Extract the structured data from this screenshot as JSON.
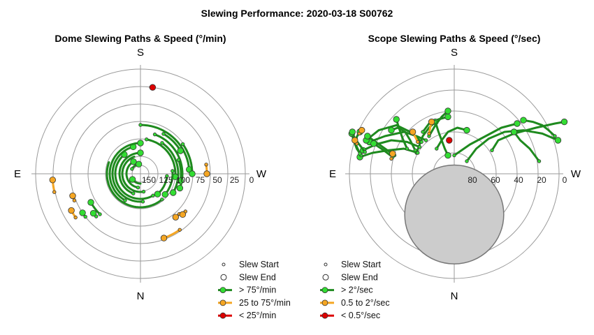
{
  "title": "Slewing Performance: 2020-03-18 S00762",
  "colors": {
    "fast": "#1e8a1e",
    "fast_marker": "#33dd33",
    "mid": "#f5a623",
    "slow": "#dd0000",
    "ring": "#9a9a9a",
    "axis": "#555555"
  },
  "chart_data": [
    {
      "type": "scatter",
      "subtype": "polar-track",
      "title": "Dome Slewing Paths & Speed (°/min)",
      "direction_labels": {
        "top": "S",
        "bottom": "N",
        "left": "E",
        "right": "W"
      },
      "radial_tick_labels": [
        "150",
        "125",
        "100",
        "75",
        "50",
        "25",
        "0"
      ],
      "radial_axis_range": [
        150,
        0
      ],
      "legend": [
        {
          "label": "Slew Start",
          "symbol": "small-circle"
        },
        {
          "label": "Slew End",
          "symbol": "open-circle"
        },
        {
          "label": "> 75°/min",
          "symbol": "line-marker",
          "color": "fast"
        },
        {
          "label": "25 to 75°/min",
          "symbol": "line-marker",
          "color": "mid"
        },
        {
          "label": "< 25°/min",
          "symbol": "line-marker",
          "color": "slow"
        }
      ],
      "series": [
        {
          "kind": "arc",
          "speed": "fast",
          "r": 14,
          "a1": 180,
          "a2": 235,
          "start": false,
          "end": true
        },
        {
          "kind": "arc",
          "speed": "fast",
          "r": 14,
          "a1": 300,
          "a2": 350,
          "start": true,
          "end": true
        },
        {
          "kind": "arc",
          "speed": "fast",
          "r": 20,
          "a1": 190,
          "a2": 330,
          "start": true,
          "end": true
        },
        {
          "kind": "arc",
          "speed": "fast",
          "r": 26,
          "a1": 170,
          "a2": 340,
          "start": true,
          "end": false
        },
        {
          "kind": "arc",
          "speed": "fast",
          "r": 30,
          "a1": 200,
          "a2": 360,
          "start": true,
          "end": true
        },
        {
          "kind": "arc",
          "speed": "fast",
          "r": 36,
          "a1": 150,
          "a2": 320,
          "start": true,
          "end": true
        },
        {
          "kind": "arc",
          "speed": "fast",
          "r": 40,
          "a1": 175,
          "a2": 345,
          "start": true,
          "end": true
        },
        {
          "kind": "arc",
          "speed": "fast",
          "r": 44,
          "a1": 210,
          "a2": 360,
          "start": true,
          "end": true
        },
        {
          "kind": "arc",
          "speed": "fast",
          "r": 48,
          "a1": 140,
          "a2": 290,
          "start": true,
          "end": false
        },
        {
          "kind": "arc",
          "speed": "fast",
          "r": 54,
          "a1": 35,
          "a2": 120,
          "start": true,
          "end": true
        },
        {
          "kind": "arc",
          "speed": "fast",
          "r": 50,
          "a1": 10,
          "a2": 95,
          "start": true,
          "end": true
        },
        {
          "kind": "arc",
          "speed": "fast",
          "r": 60,
          "a1": 20,
          "a2": 110,
          "start": true,
          "end": true
        },
        {
          "kind": "arc",
          "speed": "fast",
          "r": 70,
          "a1": 0,
          "a2": 85,
          "start": true,
          "end": true
        },
        {
          "kind": "arc",
          "speed": "fast",
          "r": 66,
          "a1": 30,
          "a2": 60,
          "start": true,
          "end": true
        },
        {
          "kind": "arc",
          "speed": "fast",
          "r": 74,
          "a1": 55,
          "a2": 90,
          "start": true,
          "end": true
        },
        {
          "kind": "arc",
          "speed": "fast",
          "r": 58,
          "a1": 70,
          "a2": 100,
          "start": true,
          "end": true
        },
        {
          "kind": "arc",
          "speed": "fast",
          "r": 46,
          "a1": 85,
          "a2": 130,
          "start": true,
          "end": true
        },
        {
          "kind": "arc",
          "speed": "fast",
          "r": 38,
          "a1": 95,
          "a2": 140,
          "start": true,
          "end": true
        },
        {
          "kind": "arc",
          "speed": "fast",
          "r": 82,
          "a1": 225,
          "a2": 240,
          "start": true,
          "end": true
        },
        {
          "kind": "arc",
          "speed": "mid",
          "r": 126,
          "a1": 258,
          "a2": 266,
          "start": true,
          "end": true
        },
        {
          "kind": "arc",
          "speed": "mid",
          "r": 112,
          "a1": 236,
          "a2": 242,
          "start": true,
          "end": true
        },
        {
          "kind": "arc",
          "speed": "mid",
          "r": 102,
          "a1": 248,
          "a2": 252,
          "start": true,
          "end": true
        },
        {
          "kind": "arc",
          "speed": "mid",
          "r": 98,
          "a1": 145,
          "a2": 160,
          "start": true,
          "end": true
        },
        {
          "kind": "arc",
          "speed": "mid",
          "r": 95,
          "a1": 82,
          "a2": 90,
          "start": true,
          "end": true
        },
        {
          "kind": "arc",
          "speed": "mid",
          "r": 80,
          "a1": 136,
          "a2": 141,
          "start": true,
          "end": true
        },
        {
          "kind": "arc",
          "speed": "mid",
          "r": 84,
          "a1": 130,
          "a2": 134,
          "start": true,
          "end": true
        },
        {
          "kind": "arc",
          "speed": "slow",
          "r": 125,
          "a1": 7,
          "a2": 8,
          "start": true,
          "end": true
        },
        {
          "kind": "arc",
          "speed": "fast",
          "r": 100,
          "a1": 232,
          "a2": 236,
          "start": true,
          "end": true
        },
        {
          "kind": "arc",
          "speed": "fast",
          "r": 88,
          "a1": 226,
          "a2": 230,
          "start": true,
          "end": true
        }
      ]
    },
    {
      "type": "scatter",
      "subtype": "polar-track",
      "title": "Scope Slewing Paths & Speed (°/sec)",
      "direction_labels": {
        "top": "S",
        "bottom": "N",
        "left": "E",
        "right": "W"
      },
      "radial_tick_labels": [
        "80",
        "60",
        "40",
        "20",
        "0"
      ],
      "radial_axis_range": [
        90,
        0
      ],
      "shaded_region": {
        "az": 180,
        "alt": 55,
        "radius_deg": 17
      },
      "legend": [
        {
          "label": "Slew Start",
          "symbol": "small-circle"
        },
        {
          "label": "Slew End",
          "symbol": "open-circle"
        },
        {
          "label": "> 2°/sec",
          "symbol": "line-marker",
          "color": "fast"
        },
        {
          "label": "0.5 to 2°/sec",
          "symbol": "line-marker",
          "color": "mid"
        },
        {
          "label": "< 0.5°/sec",
          "symbol": "line-marker",
          "color": "slow"
        }
      ],
      "series": [
        {
          "kind": "path",
          "speed": "fast",
          "pts": [
            [
              60,
              28
            ],
            [
              70,
              40
            ],
            [
              95,
              48
            ],
            [
              130,
              55
            ],
            [
              160,
              60
            ],
            [
              175,
              62
            ]
          ],
          "start": true,
          "end": true
        },
        {
          "kind": "path",
          "speed": "fast",
          "pts": [
            [
              20,
              15
            ],
            [
              35,
              30
            ],
            [
              55,
              42
            ],
            [
              80,
              50
            ],
            [
              110,
              52
            ],
            [
              140,
              48
            ],
            [
              165,
              40
            ]
          ],
          "start": true,
          "end": true
        },
        {
          "kind": "path",
          "speed": "fast",
          "pts": [
            [
              0,
              22
            ],
            [
              25,
              35
            ],
            [
              50,
              45
            ],
            [
              75,
              55
            ],
            [
              100,
              60
            ]
          ],
          "start": true,
          "end": true
        },
        {
          "kind": "path",
          "speed": "fast",
          "pts": [
            [
              -28,
              30
            ],
            [
              -20,
              40
            ],
            [
              -10,
              50
            ],
            [
              5,
              55
            ],
            [
              20,
              52
            ]
          ],
          "start": true,
          "end": true
        },
        {
          "kind": "path",
          "speed": "fast",
          "pts": [
            [
              -50,
              50
            ],
            [
              -40,
              60
            ],
            [
              -25,
              65
            ],
            [
              -10,
              68
            ]
          ],
          "start": true,
          "end": true
        },
        {
          "kind": "path",
          "speed": "fast",
          "pts": [
            [
              -60,
              25
            ],
            [
              -55,
              35
            ],
            [
              -50,
              45
            ],
            [
              -40,
              55
            ],
            [
              -30,
              62
            ]
          ],
          "start": true,
          "end": true
        },
        {
          "kind": "path",
          "speed": "fast",
          "pts": [
            [
              -62,
              28
            ],
            [
              -70,
              40
            ],
            [
              -78,
              50
            ],
            [
              -90,
              55
            ],
            [
              -100,
              52
            ]
          ],
          "start": true,
          "end": true
        },
        {
          "kind": "path",
          "speed": "fast",
          "pts": [
            [
              -58,
              25
            ],
            [
              -80,
              30
            ],
            [
              -105,
              28
            ],
            [
              -130,
              25
            ],
            [
              -150,
              20
            ]
          ],
          "start": true,
          "end": true
        },
        {
          "kind": "path",
          "speed": "fast",
          "pts": [
            [
              -55,
              32
            ],
            [
              -75,
              38
            ],
            [
              -100,
              40
            ],
            [
              -125,
              35
            ],
            [
              -145,
              28
            ]
          ],
          "start": true,
          "end": true
        },
        {
          "kind": "path",
          "speed": "fast",
          "pts": [
            [
              -45,
              40
            ],
            [
              -60,
              45
            ],
            [
              -80,
              50
            ],
            [
              -110,
              45
            ],
            [
              -135,
              38
            ]
          ],
          "start": true,
          "end": true
        },
        {
          "kind": "path",
          "speed": "fast",
          "pts": [
            [
              -52,
              38
            ],
            [
              -70,
              50
            ],
            [
              -92,
              58
            ],
            [
              -120,
              52
            ],
            [
              -140,
              40
            ]
          ],
          "start": true,
          "end": true
        },
        {
          "kind": "path",
          "speed": "fast",
          "pts": [
            [
              -148,
              22
            ],
            [
              -155,
              30
            ],
            [
              -160,
              40
            ],
            [
              -163,
              48
            ]
          ],
          "start": true,
          "end": true
        },
        {
          "kind": "path",
          "speed": "fast",
          "pts": [
            [
              -142,
              26
            ],
            [
              -150,
              34
            ],
            [
              -158,
              42
            ],
            [
              -162,
              50
            ]
          ],
          "start": true,
          "end": true
        },
        {
          "kind": "path",
          "speed": "fast",
          "pts": [
            [
              -30,
              62
            ],
            [
              -25,
              50
            ],
            [
              -20,
              40
            ],
            [
              -15,
              30
            ],
            [
              -10,
              22
            ]
          ],
          "start": true,
          "end": true
        },
        {
          "kind": "path",
          "speed": "fast",
          "pts": [
            [
              -40,
              45
            ],
            [
              -30,
              58
            ],
            [
              -20,
              68
            ],
            [
              -10,
              75
            ]
          ],
          "start": true,
          "end": true
        },
        {
          "kind": "path",
          "speed": "fast",
          "pts": [
            [
              -75,
              30
            ],
            [
              -82,
              42
            ],
            [
              -88,
              55
            ],
            [
              -92,
              65
            ]
          ],
          "start": true,
          "end": true
        },
        {
          "kind": "path",
          "speed": "fast",
          "pts": [
            [
              -95,
              22
            ],
            [
              -110,
              30
            ],
            [
              -125,
              38
            ],
            [
              -138,
              45
            ]
          ],
          "start": true,
          "end": true
        },
        {
          "kind": "path",
          "speed": "fast",
          "pts": [
            [
              -98,
              20
            ],
            [
              -112,
              28
            ],
            [
              -128,
              36
            ]
          ],
          "start": true,
          "end": true
        },
        {
          "kind": "path",
          "speed": "fast",
          "pts": [
            [
              -150,
              24
            ],
            [
              -156,
              34
            ],
            [
              -155,
              44
            ],
            [
              -150,
              50
            ]
          ],
          "start": true,
          "end": true
        },
        {
          "kind": "path",
          "speed": "fast",
          "pts": [
            [
              135,
              15
            ],
            [
              120,
              30
            ],
            [
              105,
              40
            ],
            [
              95,
              50
            ]
          ],
          "start": true,
          "end": true
        },
        {
          "kind": "path",
          "speed": "fast",
          "pts": [
            [
              160,
              45
            ],
            [
              150,
              52
            ],
            [
              140,
              58
            ],
            [
              125,
              62
            ],
            [
              110,
              64
            ]
          ],
          "start": true,
          "end": true
        },
        {
          "kind": "path",
          "speed": "mid",
          "pts": [
            [
              -58,
              38
            ],
            [
              -62,
              44
            ],
            [
              -66,
              50
            ]
          ],
          "start": true,
          "end": true
        },
        {
          "kind": "path",
          "speed": "mid",
          "pts": [
            [
              -40,
              48
            ],
            [
              -38,
              56
            ],
            [
              -36,
              62
            ]
          ],
          "start": true,
          "end": true
        },
        {
          "kind": "path",
          "speed": "mid",
          "pts": [
            [
              -100,
              18
            ],
            [
              -98,
              24
            ]
          ],
          "start": true,
          "end": true
        },
        {
          "kind": "path",
          "speed": "mid",
          "pts": [
            [
              -151,
              48
            ],
            [
              -147,
              52
            ]
          ],
          "start": true,
          "end": true
        },
        {
          "kind": "path",
          "speed": "mid",
          "pts": [
            [
              -155,
              36
            ],
            [
              -158,
              40
            ]
          ],
          "start": true,
          "end": true
        },
        {
          "kind": "path",
          "speed": "slow",
          "pts": [
            [
              -8,
              40
            ],
            [
              -8,
              40
            ]
          ],
          "start": true,
          "end": true
        }
      ]
    }
  ]
}
